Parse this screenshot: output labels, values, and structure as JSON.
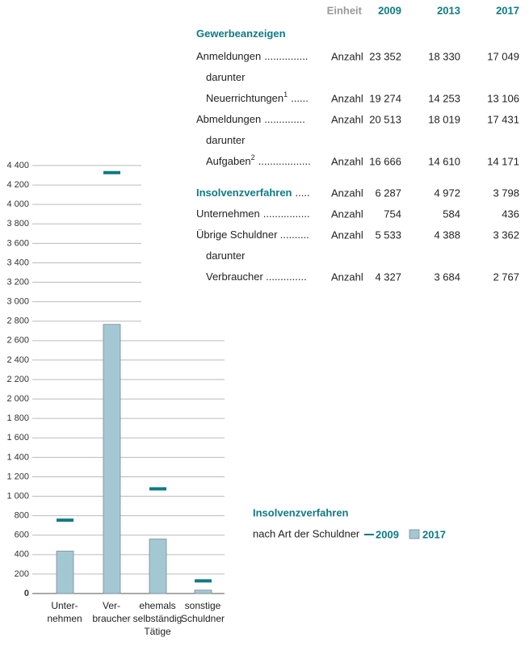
{
  "table": {
    "header": [
      "Einheit",
      "2009",
      "2013",
      "2017"
    ],
    "rows": [
      {
        "label": "Gewerbeanzeigen"
      },
      {
        "label": "Anmeldungen",
        "leader": "...............",
        "unit": "Anzahl",
        "values": [
          "23 352",
          "18 330",
          "17 049"
        ]
      },
      {
        "label": "darunter"
      },
      {
        "label": "Neuerrichtungen",
        "note": "1",
        "leader": "......",
        "unit": "Anzahl",
        "values": [
          "19 274",
          "14 253",
          "13 106"
        ]
      },
      {
        "label": "Abmeldungen",
        "leader": "..............",
        "unit": "Anzahl",
        "values": [
          "20 513",
          "18 019",
          "17 431"
        ]
      },
      {
        "label": "darunter"
      },
      {
        "label": "Aufgaben",
        "note": "2",
        "leader": "..................",
        "unit": "Anzahl",
        "values": [
          "16 666",
          "14 610",
          "14 171"
        ]
      },
      {
        "label": "Insolvenzverfahren",
        "leader": ".....",
        "unit": "Anzahl",
        "values": [
          "6 287",
          "4 972",
          "3 798"
        ]
      },
      {
        "label": "Unternehmen",
        "leader": "................",
        "unit": "Anzahl",
        "values": [
          "754",
          "584",
          "436"
        ]
      },
      {
        "label": "Übrige Schuldner",
        "leader": "..........",
        "unit": "Anzahl",
        "values": [
          "5 533",
          "4 388",
          "3 362"
        ]
      },
      {
        "label": "darunter"
      },
      {
        "label": "Verbraucher",
        "leader": "..............",
        "unit": "Anzahl",
        "values": [
          "4 327",
          "3 684",
          "2 767"
        ]
      }
    ]
  },
  "chart_data": {
    "type": "bar",
    "title": "Insolvenzverfahren",
    "subtitle": "nach Art der Schuldner",
    "categories": [
      [
        "Unter-",
        "nehmen"
      ],
      [
        "Ver-",
        "braucher"
      ],
      [
        "ehemals",
        "selbständig",
        "Tätige"
      ],
      [
        "sonstige",
        "Schuldner"
      ]
    ],
    "series": [
      {
        "name": "2009",
        "color": "#0e7a84",
        "values": [
          754,
          4327,
          1076,
          130
        ]
      },
      {
        "name": "2017",
        "color": "#a3c8d4",
        "values": [
          436,
          2767,
          560,
          35
        ]
      }
    ],
    "ylim": [
      0,
      4400
    ],
    "yticks": [
      0,
      {
        "value": 200,
        "label": "200"
      },
      400,
      600,
      800,
      {
        "value": 1000,
        "label": "1 000"
      },
      {
        "value": 1200,
        "label": "1 200"
      },
      {
        "value": 1400,
        "label": "1 400"
      },
      {
        "value": 1600,
        "label": "1 600"
      },
      {
        "value": 1800,
        "label": "1 800"
      },
      {
        "value": 2000,
        "label": "2 000"
      },
      {
        "value": 2200,
        "label": "2 200"
      },
      {
        "value": 2400,
        "label": "2 400"
      },
      {
        "value": 2600,
        "label": "2 600"
      },
      {
        "value": 2800,
        "label": "2 800"
      },
      {
        "value": 3000,
        "label": "3 000"
      },
      {
        "value": 3200,
        "label": "3 200"
      },
      {
        "value": 3400,
        "label": "3 400"
      },
      {
        "value": 3600,
        "label": "3 600"
      },
      {
        "value": 3800,
        "label": "3 800"
      },
      {
        "value": 4000,
        "label": "4 000"
      },
      {
        "value": 4200,
        "label": "4 200"
      },
      {
        "value": 4400,
        "label": "4 400"
      }
    ],
    "grid": true
  }
}
